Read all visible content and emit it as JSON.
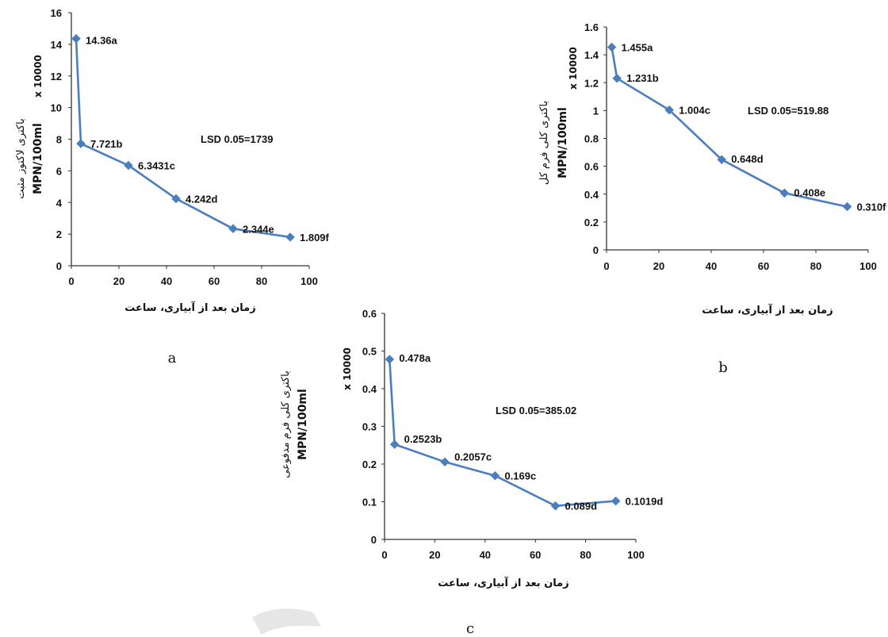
{
  "colors": {
    "series": "#4a7ebf",
    "axis": "#333333"
  },
  "watermark": {
    "color": "#e6e6e6"
  },
  "chart_data": [
    {
      "id": "a",
      "type": "line",
      "panel_label": "a",
      "x": [
        2,
        4,
        24,
        44,
        68,
        92
      ],
      "series": [
        {
          "values": [
            14.36,
            7.721,
            6.3431,
            4.242,
            2.344,
            1.809
          ]
        }
      ],
      "data_labels": [
        "14.36a",
        "7.721b",
        "6.3431c",
        "4.242d",
        "2.344e",
        "1.809f"
      ],
      "ylabel": "باکتری لاکتوز مثبت",
      "ylabel_units": "MPN/100ml",
      "multiplier": "x 10000",
      "xlabel": "زمان بعد از آبیاری، ساعت",
      "annotation": "LSD 0.05=1739",
      "xlim": [
        0,
        100
      ],
      "ylim": [
        0,
        16
      ],
      "x_ticks": [
        0,
        20,
        40,
        60,
        80,
        100
      ],
      "y_ticks": [
        0,
        2,
        4,
        6,
        8,
        10,
        12,
        14,
        16
      ],
      "y_tick_labels": [
        "0",
        "2",
        "4",
        "6",
        "8",
        "10",
        "12",
        "14",
        "16"
      ],
      "grid": false
    },
    {
      "id": "b",
      "type": "line",
      "panel_label": "b",
      "x": [
        2,
        4,
        24,
        44,
        68,
        92
      ],
      "series": [
        {
          "values": [
            1.455,
            1.231,
            1.004,
            0.648,
            0.408,
            0.31
          ]
        }
      ],
      "data_labels": [
        "1.455a",
        "1.231b",
        "1.004c",
        "0.648d",
        "0.408e",
        "0.310f"
      ],
      "ylabel": "باکتری کلی فرم کل",
      "ylabel_units": "MPN/100ml",
      "multiplier": "x 10000",
      "xlabel": "زمان بعد از آبیاری، ساعت",
      "annotation": "LSD 0.05=519.88",
      "xlim": [
        0,
        100
      ],
      "ylim": [
        0,
        1.6
      ],
      "x_ticks": [
        0,
        20,
        40,
        60,
        80,
        100
      ],
      "y_ticks": [
        0,
        0.2,
        0.4,
        0.6,
        0.8,
        1,
        1.2,
        1.4,
        1.6
      ],
      "y_tick_labels": [
        "0",
        "0.2",
        "0.4",
        "0.6",
        "0.8",
        "1",
        "1.2",
        "1.4",
        "1.6"
      ],
      "grid": false
    },
    {
      "id": "c",
      "type": "line",
      "panel_label": "c",
      "x": [
        2,
        4,
        24,
        44,
        68,
        92
      ],
      "series": [
        {
          "values": [
            0.478,
            0.2523,
            0.2057,
            0.169,
            0.089,
            0.1019
          ]
        }
      ],
      "data_labels": [
        "0.478a",
        "0.2523b",
        "0.2057c",
        "0.169c",
        "0.089d",
        "0.1019d"
      ],
      "ylabel": "باکتری کلی فرم مدفوعی",
      "ylabel_units": "MPN/100ml",
      "multiplier": "x 10000",
      "xlabel": "زمان بعد از آبیاری، ساعت",
      "annotation": "LSD 0.05=385.02",
      "xlim": [
        0,
        100
      ],
      "ylim": [
        0,
        0.6
      ],
      "x_ticks": [
        0,
        20,
        40,
        60,
        80,
        100
      ],
      "y_ticks": [
        0,
        0.1,
        0.2,
        0.3,
        0.4,
        0.5,
        0.6
      ],
      "y_tick_labels": [
        "0",
        "0.1",
        "0.2",
        "0.3",
        "0.4",
        "0.5",
        "0.6"
      ],
      "grid": false
    }
  ]
}
